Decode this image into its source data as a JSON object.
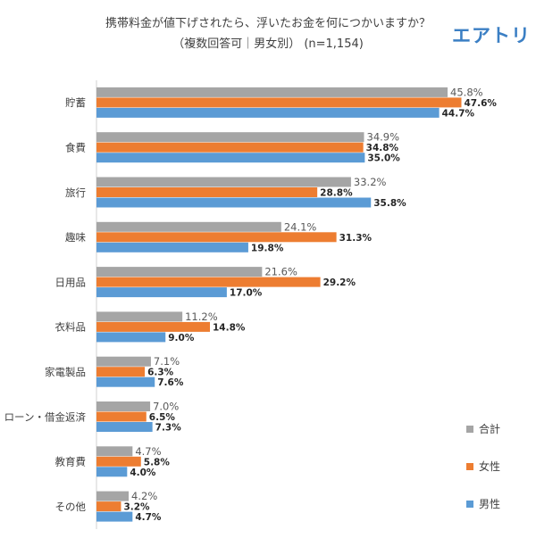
{
  "brand": "エアトリ",
  "chart_data": {
    "type": "bar",
    "orientation": "horizontal",
    "title": "携帯料金が値下げされたら、浮いたお金を何につかいますか？",
    "subtitle": "（複数回答可｜男女別） (n=1,154)",
    "categories": [
      "貯蓄",
      "食費",
      "旅行",
      "趣味",
      "日用品",
      "衣料品",
      "家電製品",
      "ローン・借金返済",
      "教育費",
      "その他"
    ],
    "series": [
      {
        "name": "合計",
        "color": "#a5a5a5",
        "values": [
          45.8,
          34.9,
          33.2,
          24.1,
          21.6,
          11.2,
          7.1,
          7.0,
          4.7,
          4.2
        ]
      },
      {
        "name": "女性",
        "color": "#ed7d31",
        "values": [
          47.6,
          34.8,
          28.8,
          31.3,
          29.2,
          14.8,
          6.3,
          6.5,
          5.8,
          3.2
        ]
      },
      {
        "name": "男性",
        "color": "#5b9bd5",
        "values": [
          44.7,
          35.0,
          35.8,
          19.8,
          17.0,
          9.0,
          7.6,
          7.3,
          4.0,
          4.7
        ]
      }
    ],
    "value_suffix": "%",
    "xlim": [
      0,
      55
    ],
    "legend": "right",
    "grid": false
  }
}
